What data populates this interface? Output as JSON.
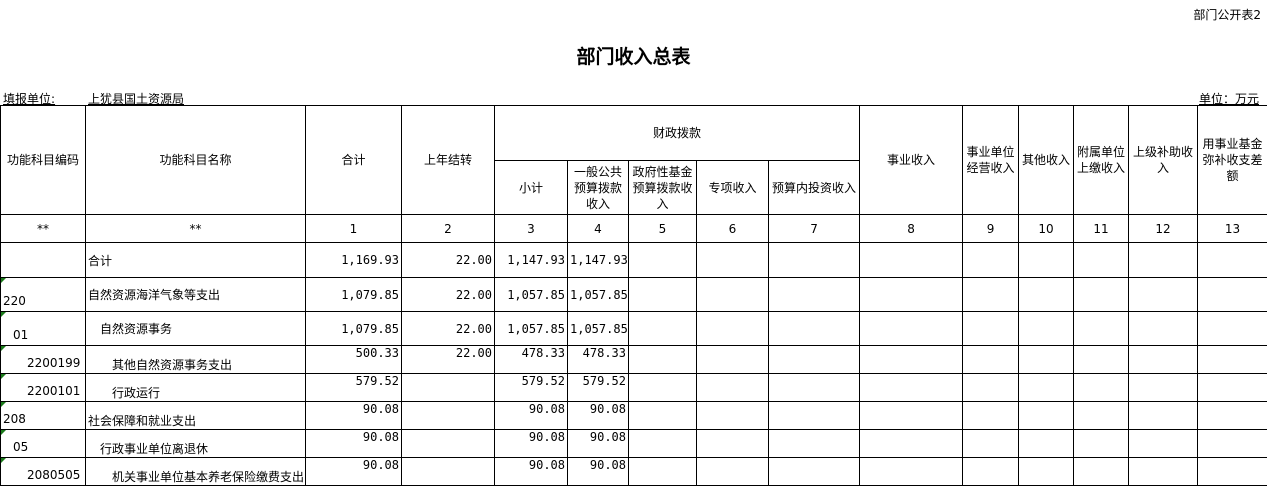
{
  "form_id": "部门公开表2",
  "title": "部门收入总表",
  "reporting_unit_label": "填报单位:",
  "reporting_unit": "上犹县国土资源局",
  "money_unit": "单位：万元",
  "headers": {
    "code": "功能科目编码",
    "name": "功能科目名称",
    "total": "合计",
    "carryover": "上年结转",
    "fiscal": "财政拨款",
    "subtotal": "小计",
    "general_budget": "一般公共预算拨款收入",
    "gov_fund": "政府性基金预算拨款收入",
    "special": "专项收入",
    "budget_invest": "预算内投资收入",
    "business": "事业收入",
    "operating": "事业单位经营收入",
    "other": "其他收入",
    "affiliated": "附属单位上缴收入",
    "superior": "上级补助收入",
    "fund_offset": "用事业基金弥补收支差额"
  },
  "index_row": [
    "**",
    "**",
    "1",
    "2",
    "3",
    "4",
    "5",
    "6",
    "7",
    "8",
    "9",
    "10",
    "11",
    "12",
    "13"
  ],
  "rows": [
    {
      "code": "",
      "name": "合计",
      "level": 0,
      "values": [
        "1,169.93",
        "22.00",
        "1,147.93",
        "1,147.93",
        "",
        "",
        "",
        "",
        "",
        "",
        "",
        "",
        ""
      ]
    },
    {
      "code": "220",
      "name": "自然资源海洋气象等支出",
      "level": 0,
      "values": [
        "1,079.85",
        "22.00",
        "1,057.85",
        "1,057.85",
        "",
        "",
        "",
        "",
        "",
        "",
        "",
        "",
        ""
      ]
    },
    {
      "code": "01",
      "name": "自然资源事务",
      "level": 1,
      "values": [
        "1,079.85",
        "22.00",
        "1,057.85",
        "1,057.85",
        "",
        "",
        "",
        "",
        "",
        "",
        "",
        "",
        ""
      ]
    },
    {
      "code": "2200199",
      "name": "其他自然资源事务支出",
      "level": 2,
      "values": [
        "500.33",
        "22.00",
        "478.33",
        "478.33",
        "",
        "",
        "",
        "",
        "",
        "",
        "",
        "",
        ""
      ]
    },
    {
      "code": "2200101",
      "name": "行政运行",
      "level": 2,
      "values": [
        "579.52",
        "",
        "579.52",
        "579.52",
        "",
        "",
        "",
        "",
        "",
        "",
        "",
        "",
        ""
      ]
    },
    {
      "code": "208",
      "name": "社会保障和就业支出",
      "level": 0,
      "values": [
        "90.08",
        "",
        "90.08",
        "90.08",
        "",
        "",
        "",
        "",
        "",
        "",
        "",
        "",
        ""
      ]
    },
    {
      "code": "05",
      "name": "行政事业单位离退休",
      "level": 1,
      "values": [
        "90.08",
        "",
        "90.08",
        "90.08",
        "",
        "",
        "",
        "",
        "",
        "",
        "",
        "",
        ""
      ]
    },
    {
      "code": "2080505",
      "name": "机关事业单位基本养老保险缴费支出",
      "level": 2,
      "values": [
        "90.08",
        "",
        "90.08",
        "90.08",
        "",
        "",
        "",
        "",
        "",
        "",
        "",
        "",
        ""
      ]
    }
  ]
}
